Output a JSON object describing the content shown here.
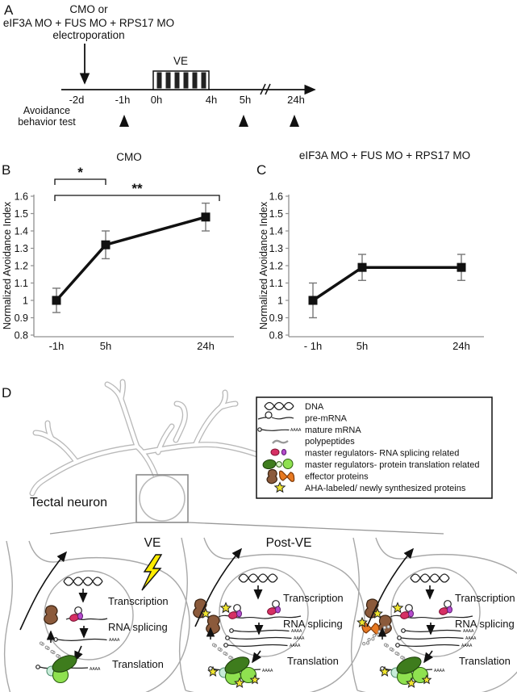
{
  "panel_a": {
    "label": "A",
    "treatment": [
      "CMO or",
      "eIF3A MO + FUS MO + RPS17 MO",
      "electroporation"
    ],
    "ve_label": "VE",
    "ticks": [
      "-2d",
      "-1h",
      "0h",
      "4h",
      "5h",
      "24h"
    ],
    "test_label": [
      "Avoidance",
      "behavior test"
    ]
  },
  "chart_data": [
    {
      "panel": "B",
      "type": "line",
      "title": "CMO",
      "ylabel": "Normalized Avoidance Index",
      "categories": [
        "-1h",
        "5h",
        "24h"
      ],
      "values": [
        1.0,
        1.32,
        1.48
      ],
      "errors": [
        0.07,
        0.08,
        0.08
      ],
      "ylim": [
        0.8,
        1.6
      ],
      "yticks": [
        "0.8",
        "0.9",
        "1",
        "1.1",
        "1.2",
        "1.3",
        "1.4",
        "1.5",
        "1.6"
      ],
      "grid": false,
      "legend_position": "none",
      "sig_brackets": [
        {
          "from": 0,
          "to": 1,
          "label": "*"
        },
        {
          "from": 0,
          "to": 2,
          "label": "**"
        }
      ]
    },
    {
      "panel": "C",
      "type": "line",
      "title": "eIF3A MO + FUS MO + RPS17 MO",
      "ylabel": "Normalized Avoidance Index",
      "categories": [
        "- 1h",
        "5h",
        "24h"
      ],
      "values": [
        1.0,
        1.19,
        1.19
      ],
      "errors": [
        0.1,
        0.075,
        0.075
      ],
      "ylim": [
        0.8,
        1.6
      ],
      "yticks": [
        "0.8",
        "0.9",
        "1",
        "1.1",
        "1.2",
        "1.3",
        "1.4",
        "1.5",
        "1.6"
      ],
      "grid": false,
      "legend_position": "none",
      "sig_brackets": []
    }
  ],
  "panel_d": {
    "label": "D",
    "neuron_label": "Tectal neuron",
    "legend": {
      "items": [
        {
          "icon": "dna-icon",
          "label": "DNA"
        },
        {
          "icon": "pre-mrna-icon",
          "label": "pre-mRNA"
        },
        {
          "icon": "mature-mrna-icon",
          "label": "mature mRNA"
        },
        {
          "icon": "polypeptides-icon",
          "label": "polypeptides"
        },
        {
          "icon": "splicing-regulators-icon",
          "label": "master regulators- RNA splicing related"
        },
        {
          "icon": "translation-regulators-icon",
          "label": "master regulators- protein translation related"
        },
        {
          "icon": "effector-proteins-icon",
          "label": "effector proteins"
        },
        {
          "icon": "aha-star-icon",
          "label": "AHA-labeled/ newly synthesized proteins"
        }
      ]
    },
    "stage_labels": [
      "Transcription",
      "RNA splicing",
      "Translation"
    ],
    "cells": [
      {
        "title": "VE",
        "lightning": true,
        "aha_stars": false,
        "mature_mrna_count": 1,
        "splicing_complexes": 1,
        "effectors": [
          "brown"
        ],
        "extra_polypeptide": false
      },
      {
        "title": "Post-VE",
        "lightning": false,
        "aha_stars": true,
        "mature_mrna_count": 3,
        "splicing_complexes": 2,
        "effectors": [
          "brown",
          "brown-star"
        ],
        "extra_polypeptide": false
      },
      {
        "title": "",
        "lightning": false,
        "aha_stars": true,
        "mature_mrna_count": 3,
        "splicing_complexes": 2,
        "effectors": [
          "brown",
          "brown-star",
          "orange-star"
        ],
        "extra_polypeptide": true
      }
    ]
  },
  "colors": {
    "crimson": "#d63064",
    "purple": "#b54ccc",
    "dark_green": "#3e7c1d",
    "light_green": "#8fe150",
    "pale_teal": "#c8ecd9",
    "brown": "#8b5a3b",
    "orange": "#e87a22",
    "star_yellow": "#efe42e",
    "lightning_yellow": "#ffec00",
    "neuron_gray": "#b9b9b9",
    "axis_gray": "#909090",
    "ink": "#111111"
  }
}
